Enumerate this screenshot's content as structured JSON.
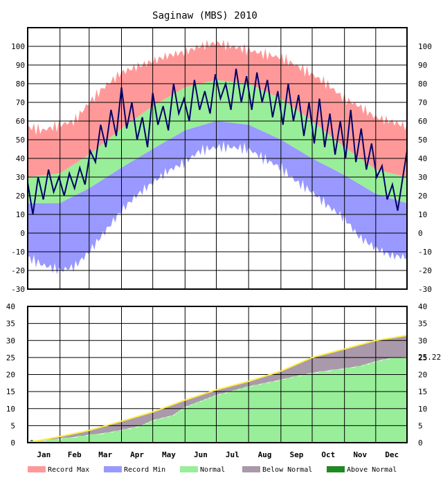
{
  "chart_data": [
    {
      "type": "area",
      "title": "Saginaw (MBS) 2010",
      "panel": "temperature",
      "xlabel": "",
      "ylabel": "",
      "ylim": [
        -30,
        110
      ],
      "y_ticks": [
        100,
        90,
        80,
        70,
        60,
        50,
        40,
        30,
        20,
        10,
        0,
        -10,
        -20,
        -30
      ],
      "y_tick_labels": [
        "100",
        "90",
        "80",
        "70",
        "60",
        "50",
        "40",
        "30",
        "20",
        "10",
        "0",
        "-10",
        "-20",
        "-30"
      ],
      "month_labels": [
        "Jan",
        "Feb",
        "Mar",
        "Apr",
        "May",
        "Jun",
        "Jul",
        "Aug",
        "Sep",
        "Oct",
        "Nov",
        "Dec"
      ],
      "grid": true,
      "x_month_starts": [
        1,
        32,
        60,
        91,
        121,
        152,
        182,
        213,
        244,
        274,
        305,
        335
      ],
      "series": [
        {
          "name": "Record Max",
          "color": "#ff9999",
          "x": [
            1,
            15,
            32,
            46,
            60,
            74,
            91,
            105,
            121,
            135,
            152,
            166,
            182,
            196,
            213,
            227,
            244,
            258,
            274,
            288,
            305,
            319,
            335,
            349,
            365
          ],
          "values": [
            57,
            55,
            58,
            60,
            70,
            78,
            86,
            89,
            92,
            95,
            97,
            100,
            102,
            100,
            98,
            96,
            94,
            90,
            85,
            80,
            72,
            68,
            62,
            60,
            57
          ]
        },
        {
          "name": "Normal",
          "color": "#99ee99",
          "note": "normal high/low band",
          "x": [
            1,
            32,
            60,
            91,
            121,
            152,
            182,
            213,
            244,
            274,
            305,
            335,
            365
          ],
          "values_high": [
            30,
            32,
            42,
            56,
            68,
            78,
            82,
            80,
            72,
            60,
            46,
            34,
            30
          ],
          "values_low": [
            16,
            16,
            24,
            35,
            45,
            55,
            60,
            58,
            50,
            40,
            31,
            21,
            16
          ]
        },
        {
          "name": "Record Min",
          "color": "#9999ff",
          "x": [
            1,
            15,
            32,
            46,
            60,
            74,
            91,
            105,
            121,
            135,
            152,
            166,
            182,
            196,
            213,
            227,
            244,
            258,
            274,
            288,
            305,
            319,
            335,
            349,
            365
          ],
          "values": [
            -13,
            -17,
            -20,
            -18,
            -10,
            0,
            12,
            20,
            27,
            33,
            38,
            44,
            46,
            46,
            45,
            40,
            35,
            28,
            22,
            15,
            8,
            -2,
            -8,
            -12,
            -13
          ]
        },
        {
          "name": "Observed",
          "color": "#000066",
          "x": [
            1,
            6,
            11,
            16,
            21,
            26,
            31,
            36,
            41,
            46,
            51,
            56,
            61,
            66,
            71,
            76,
            81,
            86,
            91,
            96,
            101,
            106,
            111,
            116,
            121,
            126,
            131,
            136,
            141,
            146,
            151,
            156,
            161,
            166,
            171,
            176,
            181,
            186,
            191,
            196,
            201,
            206,
            211,
            216,
            221,
            226,
            231,
            236,
            241,
            246,
            251,
            256,
            261,
            266,
            271,
            276,
            281,
            286,
            291,
            296,
            301,
            306,
            311,
            316,
            321,
            326,
            331,
            336,
            341,
            346,
            351,
            356,
            361,
            365
          ],
          "values": [
            27,
            10,
            30,
            18,
            34,
            22,
            30,
            20,
            32,
            24,
            35,
            26,
            44,
            38,
            58,
            46,
            66,
            52,
            78,
            56,
            70,
            50,
            62,
            46,
            75,
            58,
            68,
            55,
            80,
            64,
            72,
            60,
            82,
            66,
            76,
            64,
            85,
            72,
            80,
            66,
            88,
            70,
            84,
            66,
            86,
            70,
            82,
            62,
            76,
            58,
            80,
            60,
            74,
            52,
            70,
            48,
            72,
            46,
            64,
            42,
            60,
            40,
            66,
            38,
            56,
            34,
            48,
            30,
            36,
            18,
            26,
            12,
            30,
            44
          ]
        }
      ],
      "legend": [
        "Record Max",
        "Record Min",
        "Normal",
        "Below Normal",
        "Above Normal"
      ],
      "legend_colors": [
        "#ff9999",
        "#9999ff",
        "#99ee99",
        "#aa99aa",
        "#228822"
      ],
      "legend_placement": "bottom"
    },
    {
      "type": "area",
      "panel": "precipitation",
      "ylim": [
        0,
        40
      ],
      "y_ticks": [
        40,
        35,
        30,
        25,
        20,
        15,
        10,
        5,
        0
      ],
      "y_tick_labels": [
        "40",
        "35",
        "30",
        "25",
        "20",
        "15",
        "10",
        "5",
        "0"
      ],
      "last_value_label": "25.22",
      "grid": true,
      "series": [
        {
          "name": "Normal",
          "color": "#ffee44",
          "note": "normal cumulative (yellow line)",
          "x": [
            1,
            32,
            60,
            91,
            121,
            152,
            182,
            213,
            244,
            274,
            305,
            335,
            365
          ],
          "values": [
            0,
            1.8,
            3.6,
            6.3,
            9.0,
            12.5,
            15.5,
            18.0,
            21.0,
            25.0,
            27.5,
            30.0,
            31.5
          ]
        },
        {
          "name": "Observed",
          "color": "#99ee99",
          "x": [
            1,
            10,
            20,
            32,
            50,
            60,
            75,
            91,
            110,
            121,
            140,
            152,
            165,
            182,
            195,
            213,
            230,
            244,
            260,
            274,
            290,
            305,
            320,
            335,
            350,
            365
          ],
          "values": [
            0,
            0.3,
            0.8,
            1.2,
            1.8,
            2.3,
            2.8,
            3.7,
            5.0,
            6.6,
            8.0,
            10.5,
            12.0,
            14.0,
            15.0,
            16.5,
            17.6,
            18.5,
            19.6,
            20.5,
            21.2,
            21.8,
            22.5,
            23.9,
            24.9,
            25.22
          ]
        }
      ]
    }
  ]
}
